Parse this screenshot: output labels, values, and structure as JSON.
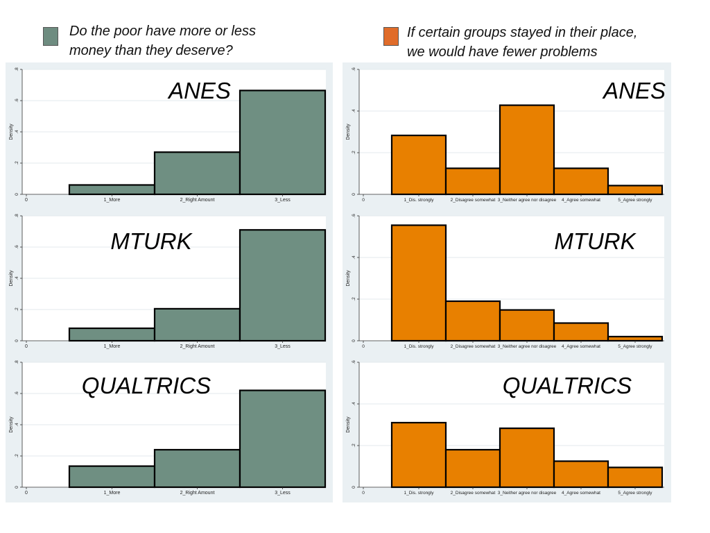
{
  "legend": [
    {
      "label": "Do the poor have more or less\nmoney than they deserve?",
      "color": "#6e8c80"
    },
    {
      "label": "If certain groups stayed in their place,\nwe would have fewer problems",
      "color": "#e06c2a"
    }
  ],
  "chart_data": [
    {
      "type": "bar",
      "title": "ANES",
      "ylabel": "Density",
      "color": "#6f8f82",
      "categories": [
        "1_More",
        "2_Right Amount",
        "3_Less"
      ],
      "values": [
        0.06,
        0.27,
        0.665
      ],
      "ylim": [
        0,
        0.8
      ],
      "yticks": [
        0,
        0.2,
        0.4,
        0.6,
        0.8
      ],
      "ytick_labels": [
        "0",
        ".2",
        ".4",
        ".6",
        ".8"
      ],
      "x_origin_label": "0",
      "grid": true
    },
    {
      "type": "bar",
      "title": "ANES",
      "ylabel": "Density",
      "color": "#e88000",
      "categories": [
        "1_Dis. strongly",
        "2_Disagree somewhat",
        "3_Neither agree nor disagree",
        "4_Agree somewhat",
        "5_Agree strongly"
      ],
      "values": [
        0.283,
        0.125,
        0.428,
        0.125,
        0.042
      ],
      "ylim": [
        0,
        0.6
      ],
      "yticks": [
        0,
        0.2,
        0.4,
        0.6
      ],
      "ytick_labels": [
        "0",
        ".2",
        ".4",
        ".6"
      ],
      "x_origin_label": "0",
      "grid": true
    },
    {
      "type": "bar",
      "title": "MTURK",
      "ylabel": "Density",
      "color": "#6f8f82",
      "categories": [
        "1_More",
        "2_Right Amount",
        "3_Less"
      ],
      "values": [
        0.08,
        0.205,
        0.71
      ],
      "ylim": [
        0,
        0.8
      ],
      "yticks": [
        0,
        0.2,
        0.4,
        0.6,
        0.8
      ],
      "ytick_labels": [
        "0",
        ".2",
        ".4",
        ".6",
        ".8"
      ],
      "x_origin_label": "0",
      "grid": true
    },
    {
      "type": "bar",
      "title": "MTURK",
      "ylabel": "Density",
      "color": "#e88000",
      "categories": [
        "1_Dis. strongly",
        "2_Disagree somewhat",
        "3_Neither agree nor disagree",
        "4_Agree somewhat",
        "5_Agree strongly"
      ],
      "values": [
        0.555,
        0.19,
        0.148,
        0.085,
        0.02
      ],
      "ylim": [
        0,
        0.6
      ],
      "yticks": [
        0,
        0.2,
        0.4,
        0.6
      ],
      "ytick_labels": [
        "0",
        ".2",
        ".4",
        ".6"
      ],
      "x_origin_label": "0",
      "grid": true
    },
    {
      "type": "bar",
      "title": "QUALTRICS",
      "ylabel": "Density",
      "color": "#6f8f82",
      "categories": [
        "1_More",
        "2_Right Amount",
        "3_Less"
      ],
      "values": [
        0.135,
        0.24,
        0.62
      ],
      "ylim": [
        0,
        0.8
      ],
      "yticks": [
        0,
        0.2,
        0.4,
        0.6,
        0.8
      ],
      "ytick_labels": [
        "0",
        ".2",
        ".4",
        ".6",
        ".8"
      ],
      "x_origin_label": "0",
      "grid": true
    },
    {
      "type": "bar",
      "title": "QUALTRICS",
      "ylabel": "Density",
      "color": "#e88000",
      "categories": [
        "1_Dis. strongly",
        "2_Disagree somewhat",
        "3_Neither agree nor disagree",
        "4_Agree somewhat",
        "5_Agree strongly"
      ],
      "values": [
        0.31,
        0.18,
        0.283,
        0.125,
        0.095
      ],
      "ylim": [
        0,
        0.6
      ],
      "yticks": [
        0,
        0.2,
        0.4,
        0.6
      ],
      "ytick_labels": [
        "0",
        ".2",
        ".4",
        ".6"
      ],
      "x_origin_label": "0",
      "grid": true
    }
  ]
}
